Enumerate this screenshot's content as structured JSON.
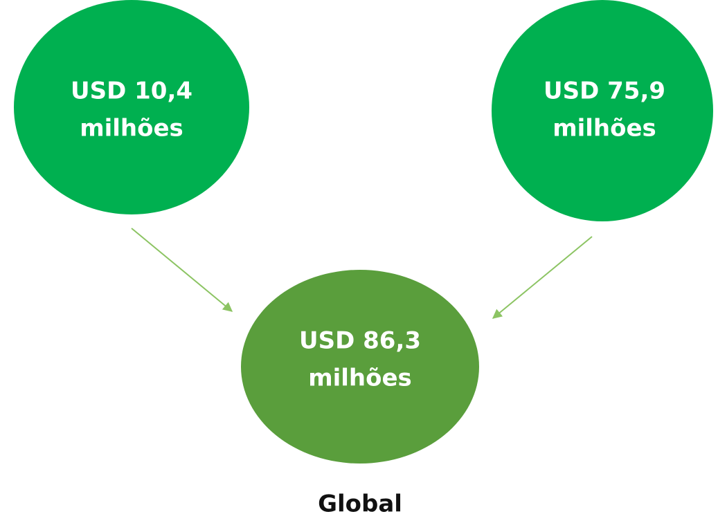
{
  "nodes": [
    {
      "lines": [
        "USD 10,4",
        "milhões"
      ]
    },
    {
      "lines": [
        "USD 75,9",
        "milhões"
      ]
    },
    {
      "lines": [
        "USD 86,3",
        "milhões"
      ]
    }
  ],
  "caption": "Global"
}
